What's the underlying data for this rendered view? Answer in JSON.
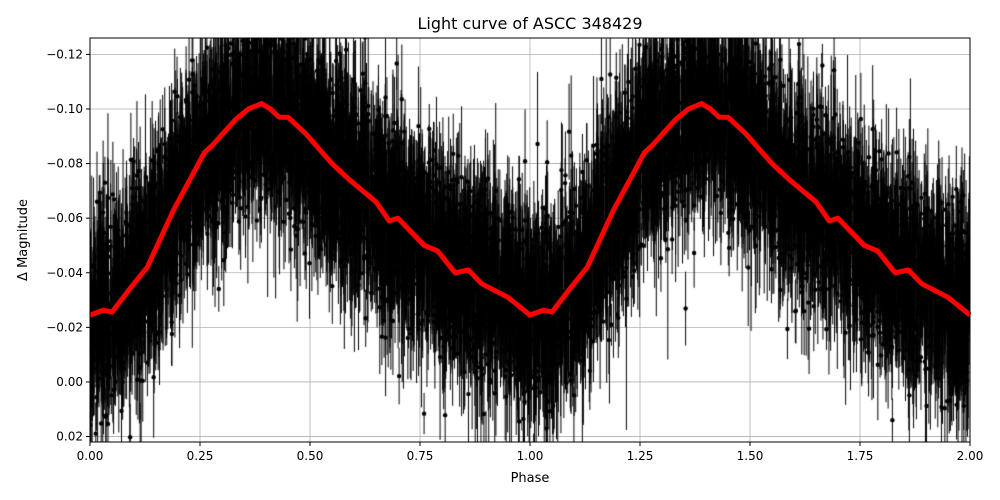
{
  "chart_data": {
    "type": "scatter",
    "title": "Light curve of ASCC 348429",
    "xlabel": "Phase",
    "ylabel": "Δ Magnitude",
    "xlim": [
      0,
      2
    ],
    "ylim": [
      0.022,
      -0.126
    ],
    "y_inverted": true,
    "grid": true,
    "xticks": [
      0,
      0.25,
      0.5,
      0.75,
      1,
      1.25,
      1.5,
      1.75,
      2
    ],
    "xtick_labels": [
      "0.00",
      "0.25",
      "0.50",
      "0.75",
      "1.00",
      "1.25",
      "1.50",
      "1.75",
      "2.00"
    ],
    "yticks": [
      -0.12,
      -0.1,
      -0.08,
      -0.06,
      -0.04,
      -0.02,
      0.0,
      0.02
    ],
    "ytick_labels": [
      "−0.12",
      "−0.10",
      "−0.08",
      "−0.06",
      "−0.04",
      "−0.02",
      "0.00",
      "0.02"
    ],
    "observations": {
      "color": "#000000",
      "marker": "circle",
      "error_bars": true,
      "scatter_sigma": 0.02
    },
    "model": {
      "color": "#ff0000",
      "period_repeat": true,
      "phase": [
        0,
        0.03,
        0.05,
        0.09,
        0.13,
        0.19,
        0.26,
        0.28,
        0.33,
        0.36,
        0.39,
        0.41,
        0.43,
        0.45,
        0.49,
        0.55,
        0.59,
        0.65,
        0.68,
        0.7,
        0.76,
        0.79,
        0.83,
        0.86,
        0.89,
        0.95,
        1.0
      ],
      "values": [
        -0.0245,
        -0.0263,
        -0.0256,
        -0.034,
        -0.042,
        -0.063,
        -0.084,
        -0.087,
        -0.096,
        -0.1,
        -0.102,
        -0.1,
        -0.097,
        -0.097,
        -0.091,
        -0.08,
        -0.074,
        -0.066,
        -0.059,
        -0.06,
        -0.05,
        -0.048,
        -0.04,
        -0.041,
        -0.036,
        -0.031,
        -0.0245
      ]
    }
  }
}
